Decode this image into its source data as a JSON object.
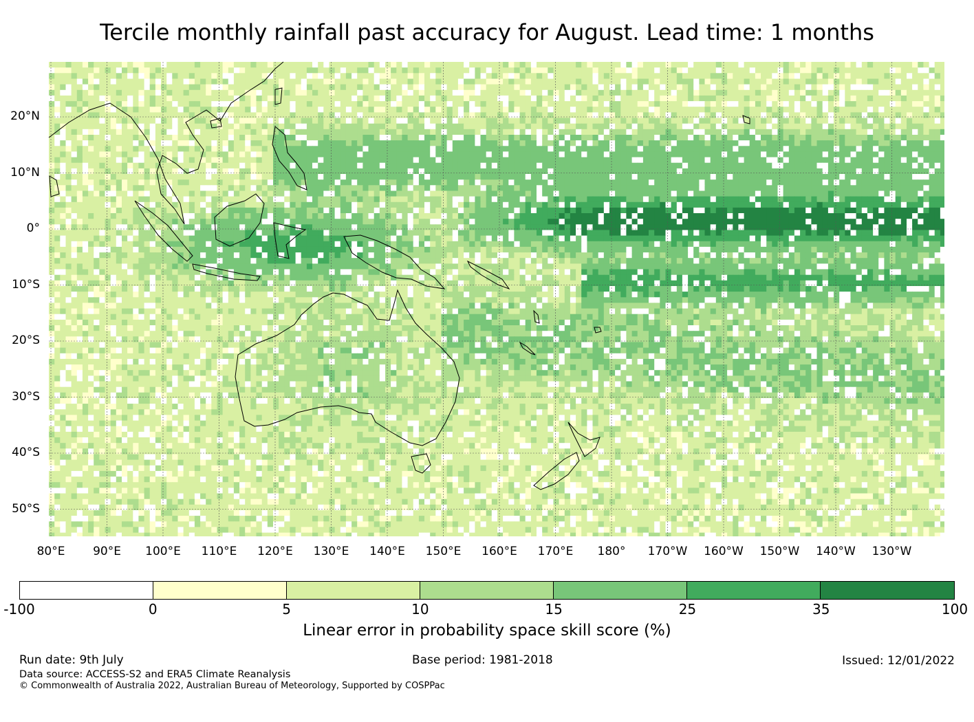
{
  "title": "Tercile monthly rainfall past accuracy for August. Lead time: 1 months",
  "map": {
    "lat_labels": [
      "20°N",
      "10°N",
      "0°",
      "10°S",
      "20°S",
      "30°S",
      "40°S",
      "50°S"
    ],
    "lon_labels": [
      "80°E",
      "90°E",
      "100°E",
      "110°E",
      "120°E",
      "130°E",
      "140°E",
      "150°E",
      "160°E",
      "170°E",
      "180°",
      "170°W",
      "160°W",
      "150°W",
      "140°W",
      "130°W"
    ]
  },
  "colorbar": {
    "ticks": [
      "-100",
      "0",
      "5",
      "10",
      "15",
      "25",
      "35",
      "100"
    ],
    "colors": [
      "#ffffff",
      "#ffffcc",
      "#d9f0a3",
      "#addd8e",
      "#78c679",
      "#41ab5d",
      "#238443"
    ],
    "label": "Linear error in probability space skill score (%)"
  },
  "footer": {
    "run_date": "Run date: 9th July",
    "base_period": "Base period: 1981-2018",
    "issued": "Issued: 12/01/2022",
    "data_source": "Data source: ACCESS-S2 and ERA5 Climate Reanalysis",
    "copyright": "© Commonwealth of Australia 2022, Australian Bureau of Meteorology, Supported by COSPPac"
  }
}
